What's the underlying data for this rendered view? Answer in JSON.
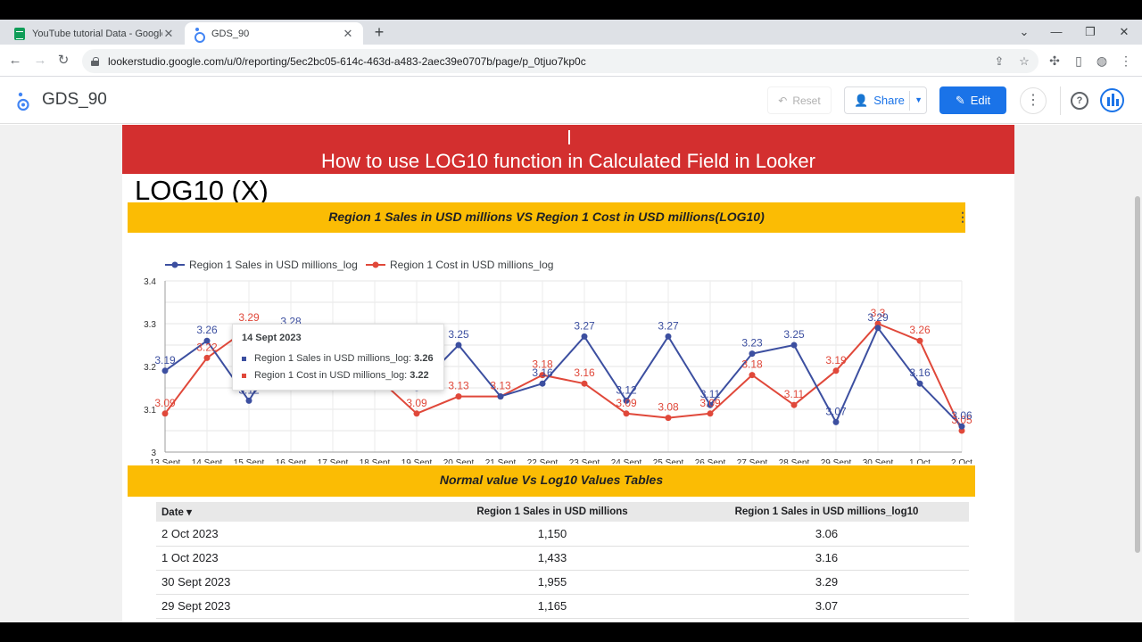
{
  "browser": {
    "tabs": [
      {
        "title": "YouTube tutorial Data - Google",
        "close": "✕"
      },
      {
        "title": "GDS_90",
        "close": "✕"
      }
    ],
    "new_tab": "+",
    "url": "lookerstudio.google.com/u/0/reporting/5ec2bc05-614c-463d-a483-2aec39e0707b/page/p_0tjuo7kp0c"
  },
  "header": {
    "title": "GDS_90",
    "reset_label": "Reset",
    "share_label": "Share",
    "edit_label": "Edit",
    "help_glyph": "?"
  },
  "report": {
    "banner_title": "How to use LOG10 function in Calculated Field in Looker",
    "heading": "LOG10 (X)",
    "chart_header": "Region 1 Sales in USD millions VS  Region 1 Cost in USD millions(LOG10)",
    "table_header": "Normal value Vs Log10 Values Tables"
  },
  "colors": {
    "banner": "#d32f2f",
    "header_bar": "#fbbc04",
    "series_sales": "#3c4fa0",
    "series_cost": "#e0483a",
    "accent": "#1a73e8"
  },
  "chart_data": {
    "type": "line",
    "categories": [
      "13 Sept",
      "14 Sept",
      "15 Sept",
      "16 Sept",
      "17 Sept",
      "18 Sept",
      "19 Sept",
      "20 Sept",
      "21 Sept",
      "22 Sept",
      "23 Sept",
      "24 Sept",
      "25 Sept",
      "26 Sept",
      "27 Sept",
      "28 Sept",
      "29 Sept",
      "30 Sept",
      "1 Oct",
      "2 Oct"
    ],
    "series": [
      {
        "name": "Region 1 Sales in USD millions_log",
        "color": "#3c4fa0",
        "values": [
          3.19,
          3.26,
          3.12,
          3.28,
          3.24,
          3.2,
          3.15,
          3.25,
          3.13,
          3.16,
          3.27,
          3.12,
          3.27,
          3.11,
          3.23,
          3.25,
          3.07,
          3.29,
          3.16,
          3.06
        ],
        "labels": [
          "3.19",
          "3.26",
          "3.12",
          "3.28",
          "",
          "",
          "",
          "3.25",
          "",
          "3.16",
          "3.27",
          "3.12",
          "3.27",
          "3.11",
          "3.23",
          "3.25",
          "3.07",
          "3.29",
          "3.16",
          "3.06"
        ]
      },
      {
        "name": "Region 1 Cost in USD millions_log",
        "color": "#e0483a",
        "values": [
          3.09,
          3.22,
          3.29,
          3.16,
          3.2,
          3.18,
          3.09,
          3.13,
          3.13,
          3.18,
          3.16,
          3.09,
          3.08,
          3.09,
          3.18,
          3.11,
          3.19,
          3.3,
          3.26,
          3.05
        ],
        "labels": [
          "3.09",
          "3.22",
          "3.29",
          "",
          "",
          "",
          "3.09",
          "3.13",
          "3.13",
          "3.18",
          "3.16",
          "3.09",
          "3.08",
          "3.09",
          "3.18",
          "3.11",
          "3.19",
          "3.3",
          "3.26",
          "3.05"
        ]
      }
    ],
    "ylim": [
      3,
      3.4
    ],
    "yticks": [
      "3",
      "3.1",
      "3.2",
      "3.3",
      "3.4"
    ],
    "legend_position": "top-left",
    "grid": true,
    "tooltip": {
      "date": "14 Sept 2023",
      "rows": [
        {
          "label": "Region 1 Sales in USD millions_log:",
          "value": "3.26",
          "color": "#3c4fa0"
        },
        {
          "label": "Region 1 Cost in USD millions_log:",
          "value": "3.22",
          "color": "#e0483a"
        }
      ]
    }
  },
  "table": {
    "columns": [
      "Date ▾",
      "Region 1 Sales in USD millions",
      "Region 1 Sales in USD millions_log10"
    ],
    "rows": [
      [
        "2 Oct 2023",
        "1,150",
        "3.06"
      ],
      [
        "1 Oct 2023",
        "1,433",
        "3.16"
      ],
      [
        "30 Sept 2023",
        "1,955",
        "3.29"
      ],
      [
        "29 Sept 2023",
        "1,165",
        "3.07"
      ]
    ]
  }
}
